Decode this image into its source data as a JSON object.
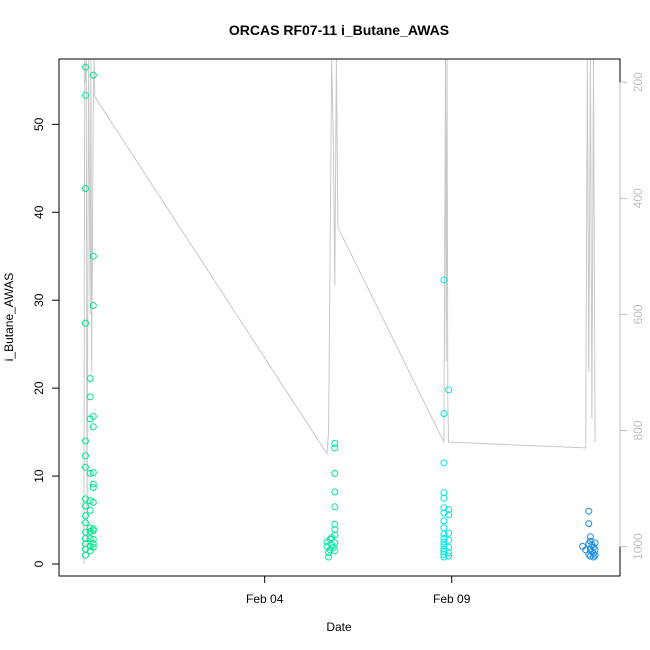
{
  "chart_data": {
    "type": "scatter",
    "title": "ORCAS RF07-11 i_Butane_AWAS",
    "xlabel": "Date",
    "ylabel": "i_Butane_AWAS",
    "x_is_date": true,
    "x_tick_labels": [
      {
        "date": "2016-02-04",
        "label": "Feb 04"
      },
      {
        "date": "2016-02-09",
        "label": "Feb 09"
      }
    ],
    "xlim": [
      "2016-01-29T12:00",
      "2016-02-13T12:00"
    ],
    "ylim": [
      0,
      58
    ],
    "y_ticks": [
      0,
      10,
      20,
      30,
      40,
      50
    ],
    "right_axis": {
      "label": "",
      "reversed": true,
      "ticks": [
        200,
        400,
        600,
        800,
        1000
      ],
      "lim": [
        1030,
        160
      ],
      "color": "#bebebe"
    },
    "series": [
      {
        "color": "#00e68c",
        "marker": "open-circle",
        "points": [
          {
            "t": "2016-01-30T05:00",
            "y": 56.5
          },
          {
            "t": "2016-01-30T05:00",
            "y": 53.3
          },
          {
            "t": "2016-01-30T05:00",
            "y": 42.7
          },
          {
            "t": "2016-01-30T05:00",
            "y": 27.4
          },
          {
            "t": "2016-01-30T05:00",
            "y": 14.0
          },
          {
            "t": "2016-01-30T05:00",
            "y": 12.3
          },
          {
            "t": "2016-01-30T05:00",
            "y": 11.0
          },
          {
            "t": "2016-01-30T05:00",
            "y": 7.4
          },
          {
            "t": "2016-01-30T05:00",
            "y": 6.6
          },
          {
            "t": "2016-01-30T05:00",
            "y": 5.5
          },
          {
            "t": "2016-01-30T05:00",
            "y": 4.7
          },
          {
            "t": "2016-01-30T05:00",
            "y": 3.6
          },
          {
            "t": "2016-01-30T05:00",
            "y": 2.9
          },
          {
            "t": "2016-01-30T05:00",
            "y": 2.3
          },
          {
            "t": "2016-01-30T05:00",
            "y": 1.7
          },
          {
            "t": "2016-01-30T05:00",
            "y": 1.0
          },
          {
            "t": "2016-01-30T08:00",
            "y": 21.1
          },
          {
            "t": "2016-01-30T08:00",
            "y": 19.0
          },
          {
            "t": "2016-01-30T08:00",
            "y": 16.5
          },
          {
            "t": "2016-01-30T08:00",
            "y": 10.3
          },
          {
            "t": "2016-01-30T08:00",
            "y": 7.2
          },
          {
            "t": "2016-01-30T08:00",
            "y": 6.1
          },
          {
            "t": "2016-01-30T08:00",
            "y": 4.1
          },
          {
            "t": "2016-01-30T08:00",
            "y": 3.7
          },
          {
            "t": "2016-01-30T08:00",
            "y": 2.9
          },
          {
            "t": "2016-01-30T08:00",
            "y": 2.0
          },
          {
            "t": "2016-01-30T08:00",
            "y": 1.5
          },
          {
            "t": "2016-01-30T10:00",
            "y": 55.6
          },
          {
            "t": "2016-01-30T10:00",
            "y": 35.0
          },
          {
            "t": "2016-01-30T10:00",
            "y": 29.4
          },
          {
            "t": "2016-01-30T10:00",
            "y": 16.8
          },
          {
            "t": "2016-01-30T10:00",
            "y": 15.6
          },
          {
            "t": "2016-01-30T10:00",
            "y": 10.4
          },
          {
            "t": "2016-01-30T10:00",
            "y": 9.1
          },
          {
            "t": "2016-01-30T10:00",
            "y": 8.7
          },
          {
            "t": "2016-01-30T10:00",
            "y": 7.0
          },
          {
            "t": "2016-01-30T10:00",
            "y": 4.0
          },
          {
            "t": "2016-01-30T10:00",
            "y": 3.8
          },
          {
            "t": "2016-01-30T10:00",
            "y": 2.8
          },
          {
            "t": "2016-01-30T10:00",
            "y": 2.3
          },
          {
            "t": "2016-01-30T10:00",
            "y": 1.9
          }
        ]
      },
      {
        "color": "#00e6a6",
        "marker": "open-circle",
        "points": [
          {
            "t": "2016-02-05T16:00",
            "y": 2.5
          },
          {
            "t": "2016-02-05T16:00",
            "y": 2.0
          },
          {
            "t": "2016-02-05T17:00",
            "y": 1.3
          },
          {
            "t": "2016-02-05T17:00",
            "y": 0.8
          },
          {
            "t": "2016-02-05T18:00",
            "y": 2.8
          },
          {
            "t": "2016-02-05T18:00",
            "y": 1.6
          },
          {
            "t": "2016-02-05T19:00",
            "y": 3.0
          },
          {
            "t": "2016-02-05T19:00",
            "y": 2.2
          },
          {
            "t": "2016-02-05T20:00",
            "y": 1.9
          },
          {
            "t": "2016-02-05T21:00",
            "y": 13.7
          },
          {
            "t": "2016-02-05T21:00",
            "y": 13.2
          },
          {
            "t": "2016-02-05T21:00",
            "y": 10.3
          },
          {
            "t": "2016-02-05T21:00",
            "y": 8.2
          },
          {
            "t": "2016-02-05T21:00",
            "y": 6.5
          },
          {
            "t": "2016-02-05T21:00",
            "y": 4.5
          },
          {
            "t": "2016-02-05T21:00",
            "y": 3.9
          },
          {
            "t": "2016-02-05T21:00",
            "y": 3.3
          },
          {
            "t": "2016-02-05T21:00",
            "y": 2.4
          },
          {
            "t": "2016-02-05T21:00",
            "y": 1.5
          }
        ]
      },
      {
        "color": "#00e6e6",
        "marker": "open-circle",
        "points": [
          {
            "t": "2016-02-08T19:00",
            "y": 32.3
          },
          {
            "t": "2016-02-08T19:00",
            "y": 17.1
          },
          {
            "t": "2016-02-08T19:00",
            "y": 11.5
          },
          {
            "t": "2016-02-08T19:00",
            "y": 8.1
          },
          {
            "t": "2016-02-08T19:00",
            "y": 7.5
          },
          {
            "t": "2016-02-08T19:00",
            "y": 6.4
          },
          {
            "t": "2016-02-08T19:00",
            "y": 5.8
          },
          {
            "t": "2016-02-08T19:00",
            "y": 4.9
          },
          {
            "t": "2016-02-08T19:00",
            "y": 4.1
          },
          {
            "t": "2016-02-08T19:00",
            "y": 3.4
          },
          {
            "t": "2016-02-08T19:00",
            "y": 2.9
          },
          {
            "t": "2016-02-08T19:00",
            "y": 2.5
          },
          {
            "t": "2016-02-08T19:00",
            "y": 2.1
          },
          {
            "t": "2016-02-08T19:00",
            "y": 1.7
          },
          {
            "t": "2016-02-08T19:00",
            "y": 1.4
          },
          {
            "t": "2016-02-08T19:00",
            "y": 1.1
          },
          {
            "t": "2016-02-08T19:00",
            "y": 0.8
          },
          {
            "t": "2016-02-08T22:00",
            "y": 19.8
          },
          {
            "t": "2016-02-08T22:00",
            "y": 6.2
          },
          {
            "t": "2016-02-08T22:00",
            "y": 5.6
          },
          {
            "t": "2016-02-08T22:00",
            "y": 3.5
          },
          {
            "t": "2016-02-08T22:00",
            "y": 2.7
          },
          {
            "t": "2016-02-08T22:00",
            "y": 1.9
          },
          {
            "t": "2016-02-08T22:00",
            "y": 1.3
          },
          {
            "t": "2016-02-08T22:00",
            "y": 0.9
          }
        ]
      },
      {
        "color": "#1a8ce6",
        "marker": "open-circle",
        "points": [
          {
            "t": "2016-02-12T12:00",
            "y": 2.0
          },
          {
            "t": "2016-02-12T14:00",
            "y": 1.6
          },
          {
            "t": "2016-02-12T16:00",
            "y": 6.0
          },
          {
            "t": "2016-02-12T16:00",
            "y": 4.6
          },
          {
            "t": "2016-02-12T16:00",
            "y": 2.3
          },
          {
            "t": "2016-02-12T16:00",
            "y": 1.1
          },
          {
            "t": "2016-02-12T17:00",
            "y": 3.1
          },
          {
            "t": "2016-02-12T17:00",
            "y": 2.6
          },
          {
            "t": "2016-02-12T17:00",
            "y": 1.7
          },
          {
            "t": "2016-02-12T17:00",
            "y": 0.9
          },
          {
            "t": "2016-02-12T18:00",
            "y": 2.2
          },
          {
            "t": "2016-02-12T18:00",
            "y": 1.4
          },
          {
            "t": "2016-02-12T19:00",
            "y": 1.9
          },
          {
            "t": "2016-02-12T19:00",
            "y": 1.2
          },
          {
            "t": "2016-02-12T19:00",
            "y": 0.8
          },
          {
            "t": "2016-02-12T20:00",
            "y": 2.4
          },
          {
            "t": "2016-02-12T20:00",
            "y": 1.6
          },
          {
            "t": "2016-02-12T20:00",
            "y": 1.0
          }
        ]
      }
    ],
    "trace": {
      "color": "#c8c8c8",
      "axis": "right",
      "points": [
        [
          "2016-01-30T04:00",
          1030
        ],
        [
          "2016-01-30T04:30",
          160
        ],
        [
          "2016-01-30T05:00",
          200
        ],
        [
          "2016-01-30T05:30",
          160
        ],
        [
          "2016-01-30T06:00",
          1000
        ],
        [
          "2016-01-30T07:00",
          160
        ],
        [
          "2016-01-30T08:00",
          600
        ],
        [
          "2016-01-30T08:30",
          160
        ],
        [
          "2016-01-30T09:00",
          700
        ],
        [
          "2016-01-30T10:00",
          230
        ],
        [
          "2016-01-30T10:30",
          160
        ],
        [
          "2016-01-30T11:00",
          225
        ],
        [
          "2016-02-05T16:00",
          840
        ],
        [
          "2016-02-05T17:00",
          800
        ],
        [
          "2016-02-05T19:00",
          160
        ],
        [
          "2016-02-05T20:00",
          300
        ],
        [
          "2016-02-05T21:00",
          550
        ],
        [
          "2016-02-05T22:00",
          160
        ],
        [
          "2016-02-05T23:00",
          450
        ],
        [
          "2016-02-08T19:00",
          820
        ],
        [
          "2016-02-08T20:00",
          160
        ],
        [
          "2016-02-08T20:30",
          680
        ],
        [
          "2016-02-08T21:00",
          160
        ],
        [
          "2016-02-08T21:30",
          750
        ],
        [
          "2016-02-08T22:00",
          820
        ],
        [
          "2016-02-12T14:00",
          830
        ],
        [
          "2016-02-12T15:00",
          160
        ],
        [
          "2016-02-12T16:00",
          700
        ],
        [
          "2016-02-12T17:00",
          160
        ],
        [
          "2016-02-12T18:00",
          780
        ],
        [
          "2016-02-12T19:00",
          160
        ],
        [
          "2016-02-12T20:00",
          820
        ]
      ]
    }
  }
}
